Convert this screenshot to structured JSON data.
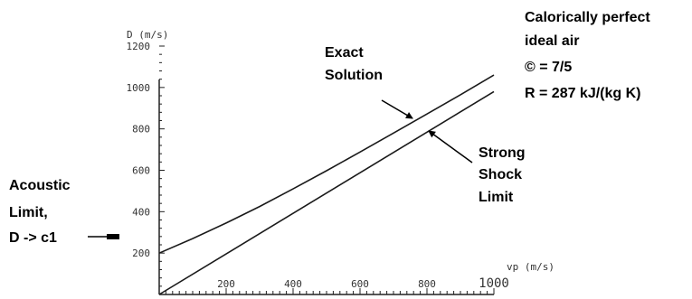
{
  "chart_data": {
    "type": "line",
    "xlabel": "vp (m/s)",
    "ylabel": "D (m/s)",
    "xlim": [
      0,
      1000
    ],
    "ylim": [
      0,
      1200
    ],
    "x_ticks": [
      200,
      400,
      600,
      800,
      1000
    ],
    "y_ticks": [
      200,
      400,
      600,
      800,
      1000,
      1200
    ],
    "grid": false,
    "series": [
      {
        "name": "Exact Solution",
        "x": [
          0,
          100,
          200,
          300,
          400,
          500,
          600,
          700,
          800,
          900,
          1000
        ],
        "y": [
          200,
          270,
          345,
          425,
          510,
          598,
          688,
          780,
          872,
          965,
          1060
        ]
      },
      {
        "name": "Strong Shock Limit",
        "x": [
          0,
          1000
        ],
        "y": [
          0,
          980
        ]
      }
    ],
    "annotations": {
      "exact": [
        "Exact",
        "Solution"
      ],
      "strong": [
        "Strong",
        "Shock",
        "Limit"
      ],
      "acoustic": [
        "Acoustic",
        "Limit,",
        "D -> c1"
      ],
      "gas": [
        "Calorically perfect",
        "ideal air",
        "© = 7/5",
        "R = 287 kJ/(kg K)"
      ]
    }
  }
}
